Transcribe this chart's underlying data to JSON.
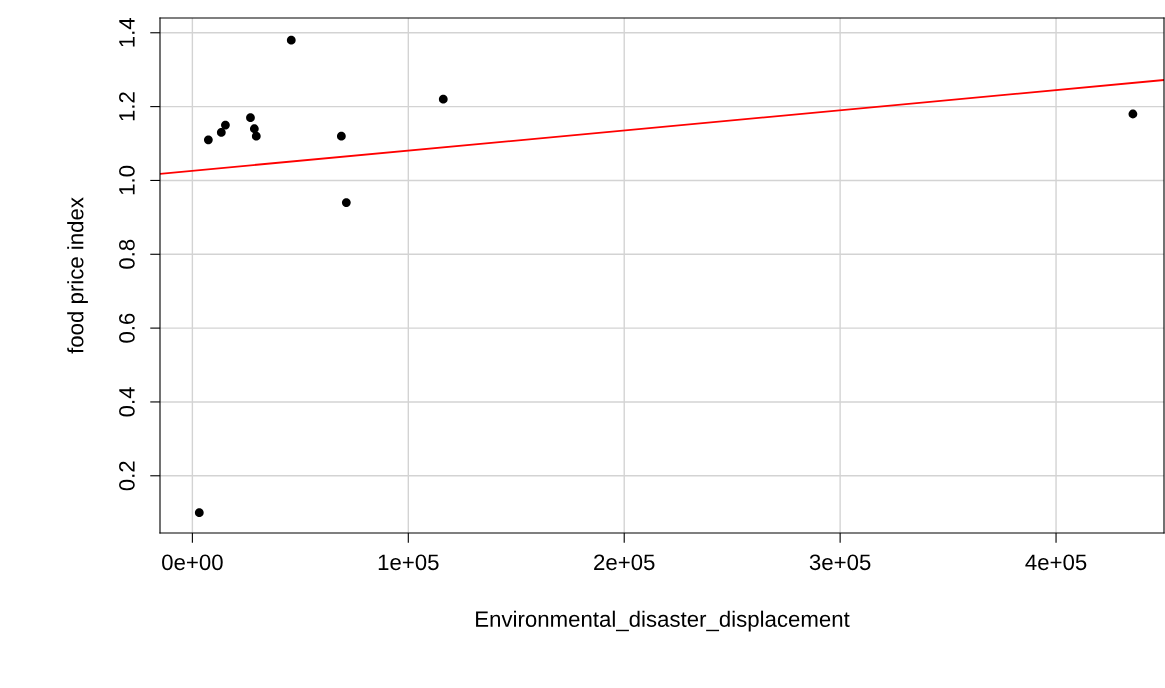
{
  "chart_data": {
    "type": "scatter",
    "xlabel": "Environmental_disaster_displacement",
    "ylabel": "food price index",
    "series": [
      {
        "color": "#000000",
        "marker": "circle",
        "x": [
          3200,
          7400,
          13400,
          15300,
          26900,
          28700,
          29600,
          45800,
          69000,
          71300,
          116200,
          435600
        ],
        "values": [
          0.1,
          1.11,
          1.13,
          1.15,
          1.17,
          1.14,
          1.12,
          1.38,
          1.12,
          0.94,
          1.22,
          1.18
        ]
      },
      {
        "type": "line",
        "color": "#ff0000",
        "line_style": "solid",
        "x": [
          -15000,
          450000
        ],
        "values": [
          1.018,
          1.272
        ]
      }
    ],
    "xlim": [
      -15000,
      450000
    ],
    "ylim": [
      0.045,
      1.44
    ],
    "xticks": [
      {
        "value": 0,
        "label": "0e+00"
      },
      {
        "value": 100000,
        "label": "1e+05"
      },
      {
        "value": 200000,
        "label": "2e+05"
      },
      {
        "value": 300000,
        "label": "3e+05"
      },
      {
        "value": 400000,
        "label": "4e+05"
      }
    ],
    "yticks": [
      {
        "value": 0.2,
        "label": "0.2"
      },
      {
        "value": 0.4,
        "label": "0.4"
      },
      {
        "value": 0.6,
        "label": "0.6"
      },
      {
        "value": 0.8,
        "label": "0.8"
      },
      {
        "value": 1.0,
        "label": "1.0"
      },
      {
        "value": 1.2,
        "label": "1.2"
      },
      {
        "value": 1.4,
        "label": "1.4"
      }
    ],
    "grid": true
  }
}
